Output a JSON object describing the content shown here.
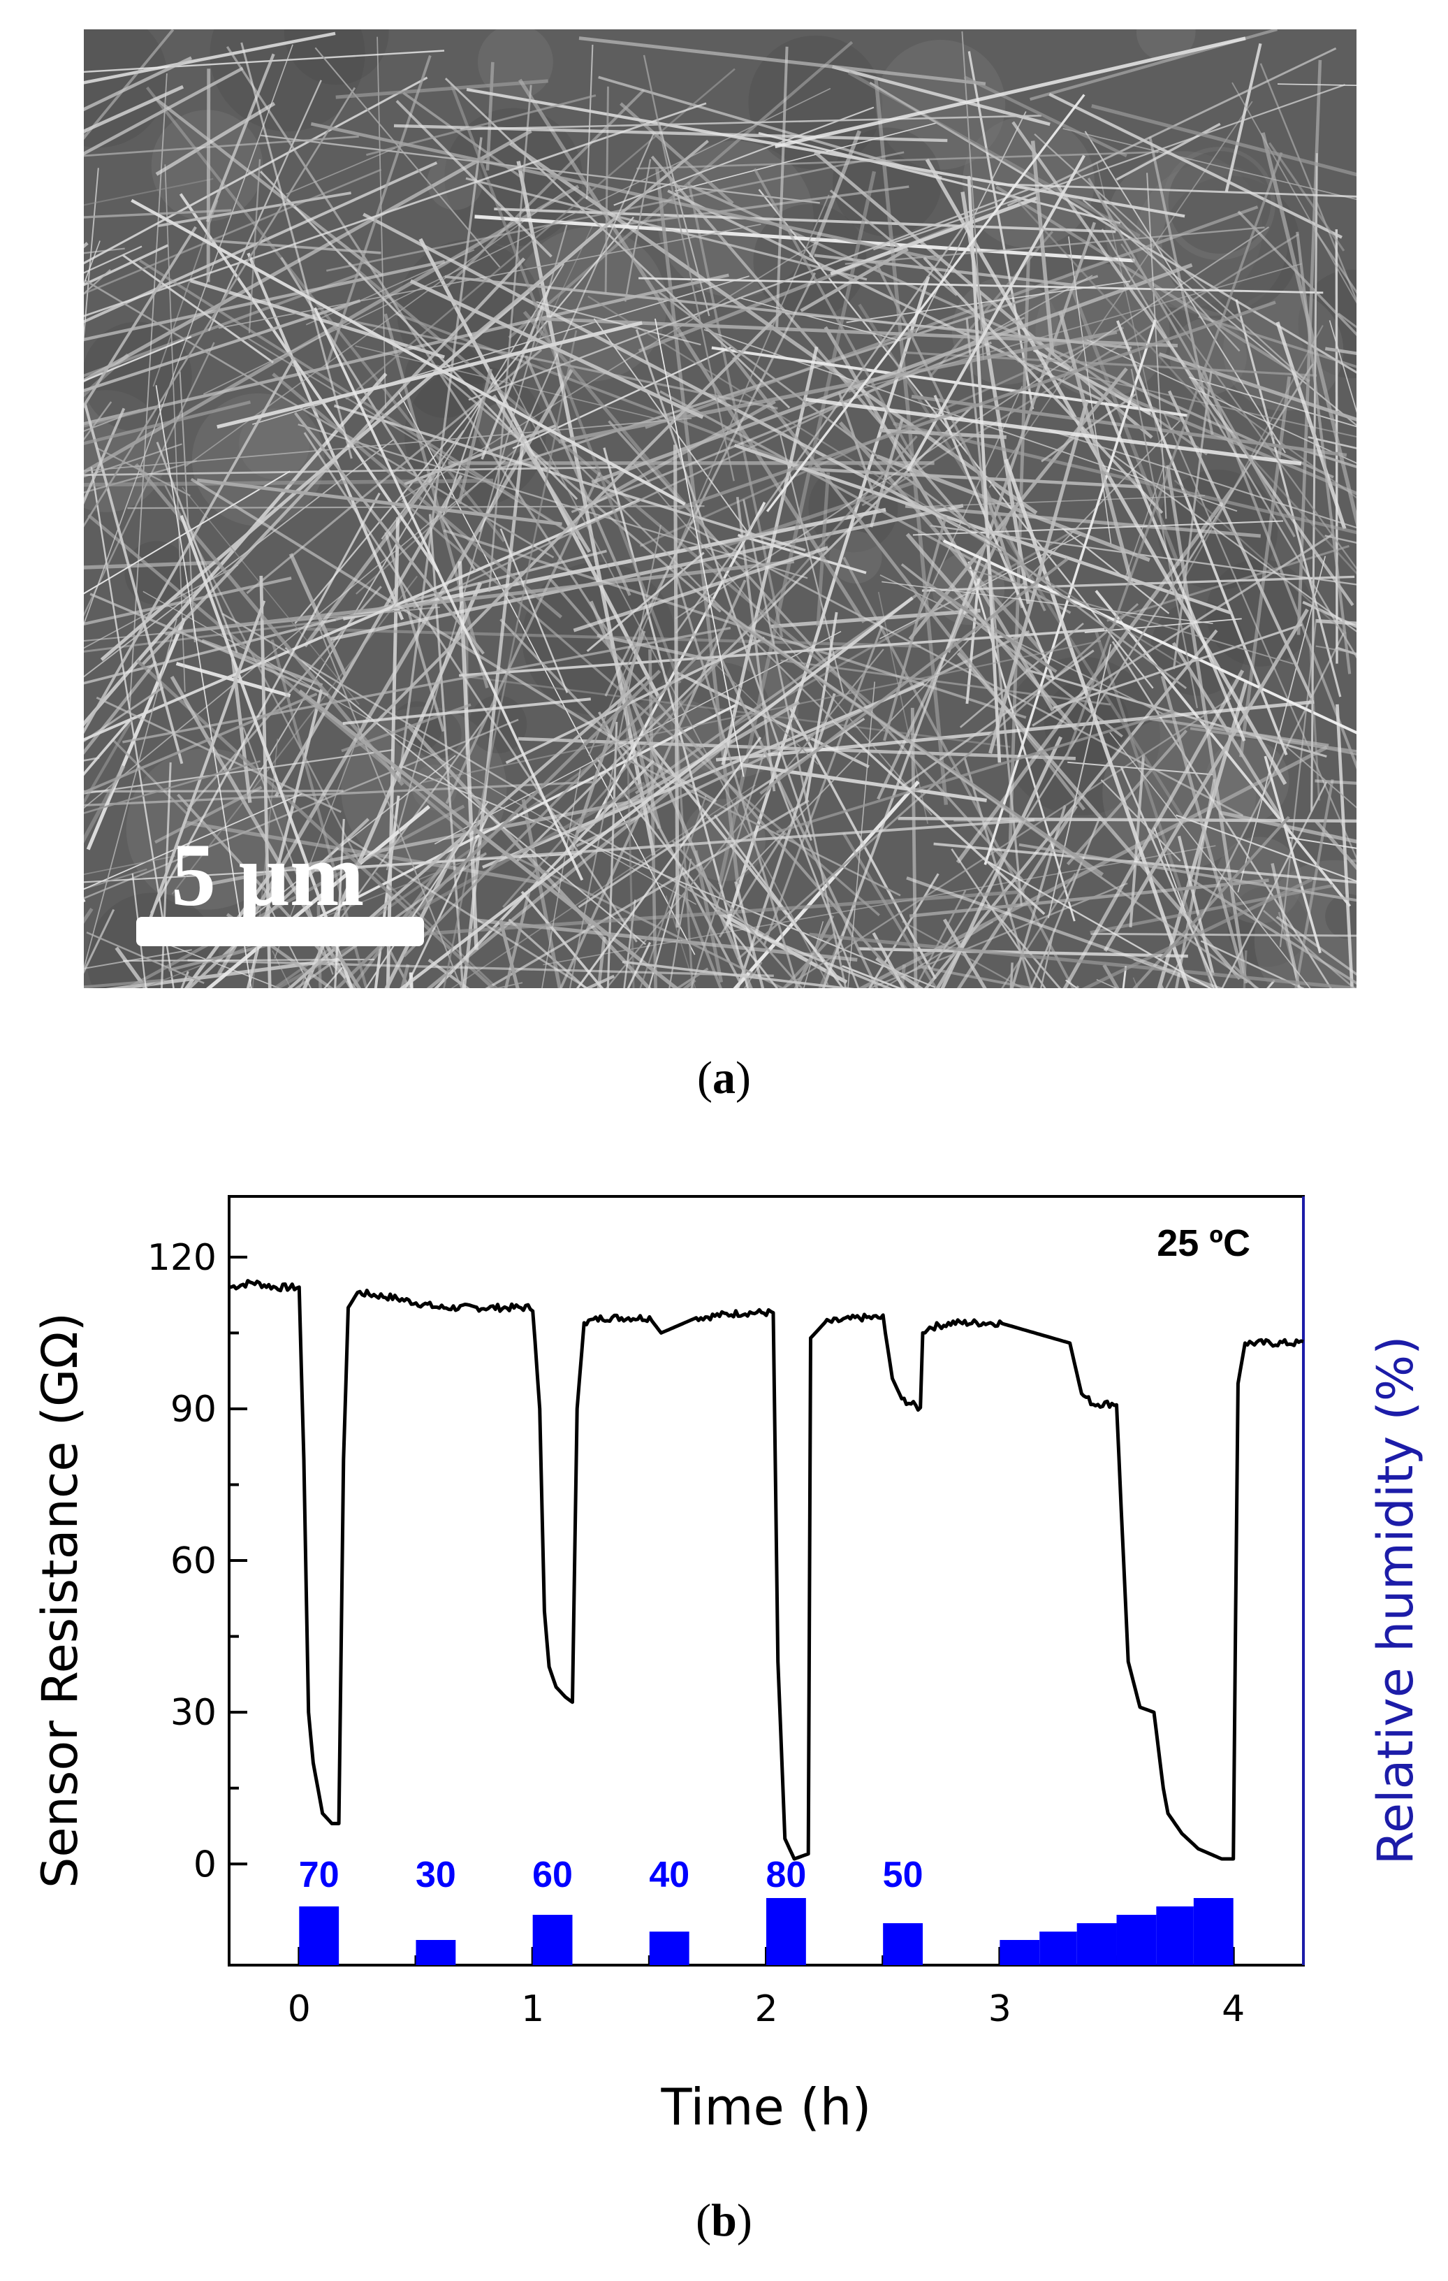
{
  "panel_a": {
    "scale_bar_label": "5 µm",
    "caption_open": "(",
    "caption_letter": "a",
    "caption_close": ")"
  },
  "panel_b": {
    "caption_open": "(",
    "caption_letter": "b",
    "caption_close": ")"
  },
  "chart_data": {
    "type": "line",
    "title": "",
    "annotation": "25 ºC",
    "xlabel": "Time (h)",
    "ylabel": "Sensor Resistance (GΩ)",
    "ylabel_right": "Relative humidity (%)",
    "xlim": [
      -0.3,
      4.3
    ],
    "ylim": [
      -20,
      132
    ],
    "x_ticks": [
      0,
      1,
      2,
      3,
      4
    ],
    "y_ticks": [
      0,
      30,
      60,
      90,
      120
    ],
    "grid": false,
    "colors": {
      "resistance": "#000000",
      "humidity": "#0000ff",
      "right_axis": "#1c1ca8"
    },
    "series": [
      {
        "x": [
          -0.3,
          -0.2,
          -0.1,
          0.0,
          0.02,
          0.04,
          0.06,
          0.1,
          0.14,
          0.17,
          0.19,
          0.21,
          0.25,
          0.4,
          0.6,
          0.8,
          1.0,
          1.03,
          1.05,
          1.07,
          1.1,
          1.14,
          1.17,
          1.19,
          1.22,
          1.3,
          1.5,
          1.55,
          1.7,
          1.9,
          2.03,
          2.05,
          2.08,
          2.12,
          2.18,
          2.19,
          2.25,
          2.4,
          2.5,
          2.54,
          2.58,
          2.66,
          2.67,
          2.69,
          2.8,
          3.0,
          3.3,
          3.35,
          3.4,
          3.5,
          3.52,
          3.55,
          3.6,
          3.66,
          3.7,
          3.72,
          3.78,
          3.85,
          3.95,
          4.0,
          4.01,
          4.02,
          4.05,
          4.3
        ],
        "values": [
          114,
          115,
          114,
          114,
          80,
          30,
          20,
          10,
          8,
          8,
          80,
          110,
          113,
          112,
          110,
          110,
          110,
          90,
          50,
          39,
          35,
          33,
          32,
          90,
          107,
          108,
          108,
          105,
          108,
          109,
          109,
          40,
          5,
          1,
          2,
          104,
          107,
          108,
          108,
          96,
          92,
          90,
          105,
          106,
          107,
          107,
          103,
          93,
          91,
          91,
          70,
          40,
          31,
          30,
          15,
          10,
          6,
          3,
          1,
          1,
          50,
          95,
          103,
          103
        ]
      },
      {
        "type": "bar",
        "bars": [
          {
            "x0": 0.0,
            "x1": 0.17,
            "rh": 70,
            "label": "70"
          },
          {
            "x0": 0.5,
            "x1": 0.67,
            "rh": 30,
            "label": "30"
          },
          {
            "x0": 1.0,
            "x1": 1.17,
            "rh": 60,
            "label": "60"
          },
          {
            "x0": 1.5,
            "x1": 1.67,
            "rh": 40,
            "label": "40"
          },
          {
            "x0": 2.0,
            "x1": 2.17,
            "rh": 80,
            "label": "80"
          },
          {
            "x0": 2.5,
            "x1": 2.67,
            "rh": 50,
            "label": "50"
          },
          {
            "x0": 3.0,
            "x1": 3.17,
            "rh": 30,
            "label": ""
          },
          {
            "x0": 3.17,
            "x1": 3.33,
            "rh": 40,
            "label": ""
          },
          {
            "x0": 3.33,
            "x1": 3.5,
            "rh": 50,
            "label": ""
          },
          {
            "x0": 3.5,
            "x1": 3.67,
            "rh": 60,
            "label": ""
          },
          {
            "x0": 3.67,
            "x1": 3.83,
            "rh": 70,
            "label": ""
          },
          {
            "x0": 3.83,
            "x1": 4.0,
            "rh": 80,
            "label": ""
          }
        ]
      }
    ]
  }
}
